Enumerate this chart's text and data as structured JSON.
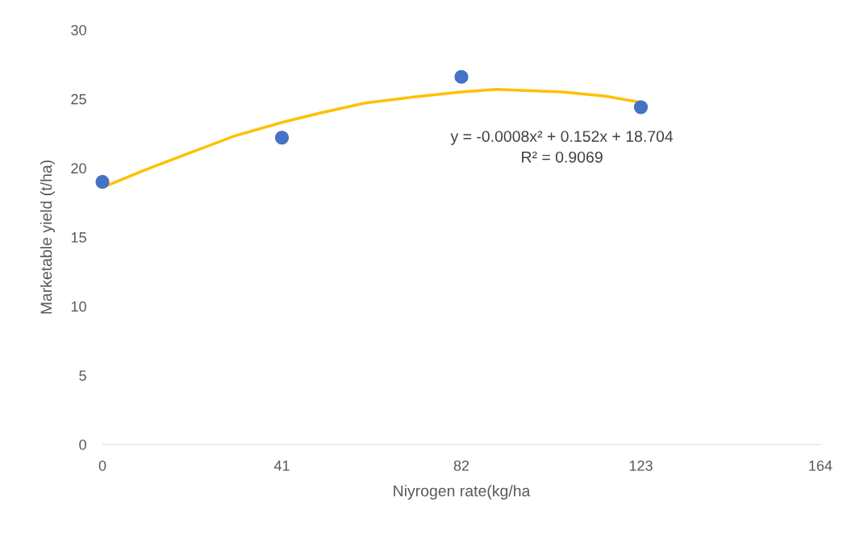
{
  "chart_data": {
    "type": "scatter",
    "xlabel": "Niyrogen rate(kg/ha",
    "ylabel": "Marketable yield (t/ha)",
    "x": [
      0,
      41,
      82,
      123
    ],
    "series": [
      {
        "color": "#4472c4",
        "values": [
          19.0,
          22.2,
          26.6,
          24.4
        ],
        "marker": "circle"
      },
      {
        "type": "line",
        "color": "#ffc000",
        "marker": "none",
        "x": [
          0,
          10,
          20,
          30,
          41,
          50,
          60,
          70,
          82,
          90,
          105,
          115,
          123
        ],
        "values": [
          18.6,
          19.9,
          21.1,
          22.3,
          23.3,
          24.0,
          24.7,
          25.1,
          25.5,
          25.7,
          25.5,
          25.2,
          24.75
        ]
      }
    ],
    "annotations": [
      "y = -0.0008x² + 0.152x + 18.704",
      "R² = 0.9069"
    ],
    "xlim": [
      0,
      164
    ],
    "xticks": [
      0,
      41,
      82,
      123,
      164
    ],
    "ylim": [
      0,
      30
    ],
    "yticks": [
      0,
      5,
      10,
      15,
      20,
      25,
      30
    ],
    "grid": false
  }
}
